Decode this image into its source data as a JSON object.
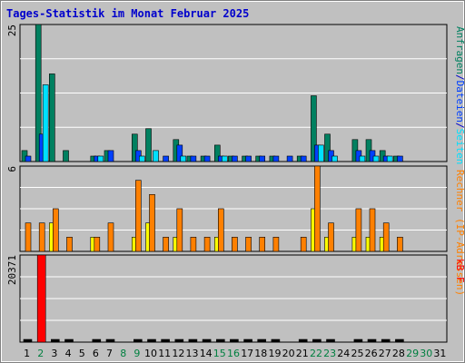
{
  "colors": {
    "background": "#c0c0c0",
    "plot_background": "#c0c0c0",
    "grid": "#ffffff",
    "title": "#0000cc",
    "anfragen": "#008060",
    "dateien": "#0040ff",
    "seiten": "#00e0ff",
    "ip_adressen": "#ffff00",
    "rechner": "#ff8000",
    "kbf": "#ff0000",
    "weekday_label": "#000000",
    "weekend_label": "#008040"
  },
  "chart_data": [
    {
      "type": "bar",
      "title": "Tages-Statistik im Monat Februar 2025",
      "panel": "top",
      "y_max_label": "25",
      "ylim": [
        0,
        25
      ],
      "legend": {
        "placement": "right-vertical",
        "parts": [
          {
            "text": "Anfragen",
            "color_key": "anfragen"
          },
          {
            "text": "/",
            "color_key": "title"
          },
          {
            "text": "Dateien",
            "color_key": "dateien"
          },
          {
            "text": "/",
            "color_key": "title"
          },
          {
            "text": "Seiten",
            "color_key": "seiten"
          }
        ]
      },
      "categories": [
        "1",
        "2",
        "3",
        "4",
        "5",
        "6",
        "7",
        "8",
        "9",
        "10",
        "11",
        "12",
        "13",
        "14",
        "15",
        "16",
        "17",
        "18",
        "19",
        "20",
        "21",
        "22",
        "23",
        "24",
        "25",
        "26",
        "27",
        "28",
        "29",
        "30",
        "31"
      ],
      "series": [
        {
          "name": "Anfragen",
          "color_key": "anfragen",
          "values": [
            2,
            25,
            16,
            2,
            0,
            1,
            2,
            0,
            5,
            6,
            0,
            4,
            1,
            1,
            3,
            1,
            1,
            1,
            1,
            0,
            1,
            12,
            5,
            0,
            4,
            4,
            2,
            1,
            0,
            0,
            0
          ]
        },
        {
          "name": "Dateien",
          "color_key": "dateien",
          "values": [
            1,
            5,
            0,
            0,
            0,
            1,
            2,
            0,
            2,
            0,
            1,
            3,
            1,
            1,
            1,
            1,
            1,
            1,
            1,
            1,
            1,
            3,
            2,
            0,
            2,
            2,
            1,
            1,
            0,
            0,
            0
          ]
        },
        {
          "name": "Seiten",
          "color_key": "seiten",
          "values": [
            0,
            14,
            0,
            0,
            0,
            1,
            0,
            0,
            1,
            2,
            0,
            1,
            0,
            0,
            1,
            0,
            0,
            0,
            0,
            0,
            0,
            3,
            1,
            0,
            1,
            1,
            1,
            0,
            0,
            0,
            0
          ]
        }
      ]
    },
    {
      "type": "bar",
      "panel": "middle",
      "y_max_label": "6",
      "ylim": [
        0,
        6
      ],
      "legend": {
        "placement": "right-vertical",
        "parts": [
          {
            "text": "Rechner (IP-Adressen)",
            "color_key": "rechner"
          }
        ]
      },
      "categories": [
        "1",
        "2",
        "3",
        "4",
        "5",
        "6",
        "7",
        "8",
        "9",
        "10",
        "11",
        "12",
        "13",
        "14",
        "15",
        "16",
        "17",
        "18",
        "19",
        "20",
        "21",
        "22",
        "23",
        "24",
        "25",
        "26",
        "27",
        "28",
        "29",
        "30",
        "31"
      ],
      "series": [
        {
          "name": "IP-Adressen",
          "color_key": "ip_adressen",
          "values": [
            0,
            0,
            2,
            0,
            0,
            1,
            0,
            0,
            1,
            2,
            0,
            1,
            0,
            0,
            1,
            0,
            0,
            0,
            0,
            0,
            0,
            3,
            1,
            0,
            1,
            1,
            1,
            0,
            0,
            0,
            0
          ]
        },
        {
          "name": "Rechner",
          "color_key": "rechner",
          "values": [
            2,
            2,
            3,
            1,
            0,
            1,
            2,
            0,
            5,
            4,
            1,
            3,
            1,
            1,
            3,
            1,
            1,
            1,
            1,
            0,
            1,
            6,
            2,
            0,
            3,
            3,
            2,
            1,
            0,
            0,
            0
          ]
        }
      ]
    },
    {
      "type": "bar",
      "panel": "bottom",
      "y_max_label": "20371",
      "ylim": [
        0,
        20371
      ],
      "legend": {
        "placement": "right-vertical",
        "parts": [
          {
            "text": "kB F",
            "color_key": "kbf"
          }
        ]
      },
      "categories": [
        "1",
        "2",
        "3",
        "4",
        "5",
        "6",
        "7",
        "8",
        "9",
        "10",
        "11",
        "12",
        "13",
        "14",
        "15",
        "16",
        "17",
        "18",
        "19",
        "20",
        "21",
        "22",
        "23",
        "24",
        "25",
        "26",
        "27",
        "28",
        "29",
        "30",
        "31"
      ],
      "series": [
        {
          "name": "kB F",
          "color_key": "kbf",
          "values": [
            1,
            20371,
            1,
            1,
            0,
            1,
            1,
            0,
            1,
            1,
            1,
            1,
            1,
            1,
            1,
            1,
            1,
            1,
            1,
            0,
            1,
            1,
            1,
            0,
            1,
            1,
            1,
            1,
            0,
            0,
            0
          ]
        }
      ]
    }
  ],
  "x_axis": {
    "day_labels": [
      "1",
      "2",
      "3",
      "4",
      "5",
      "6",
      "7",
      "8",
      "9",
      "10",
      "11",
      "12",
      "13",
      "14",
      "15",
      "16",
      "17",
      "18",
      "19",
      "20",
      "21",
      "22",
      "23",
      "24",
      "25",
      "26",
      "27",
      "28",
      "29",
      "30",
      "31"
    ],
    "weekend_days": [
      "2",
      "8",
      "9",
      "15",
      "16",
      "22",
      "23",
      "29",
      "30"
    ]
  }
}
